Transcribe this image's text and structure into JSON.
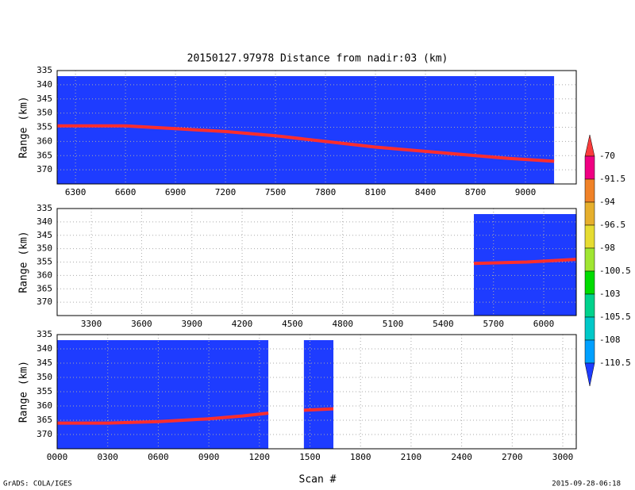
{
  "title": "20150127.97978    Distance from nadir:03 (km)",
  "xlabel": "Scan #",
  "credit": "GrADS: COLA/IGES",
  "timestamp": "2015-09-28-06:18",
  "colorbar": {
    "labels": [
      -70,
      -91.5,
      -94,
      -96.5,
      -98,
      -100.5,
      -103,
      -105.5,
      -108,
      -110.5
    ],
    "colors": [
      "#fa3c3c",
      "#f00082",
      "#f08228",
      "#e6af2d",
      "#e6dc32",
      "#a0e632",
      "#00dc00",
      "#00d28c",
      "#00c8c8",
      "#00a0ff",
      "#1e3cff"
    ]
  },
  "chart_data": [
    {
      "type": "line",
      "ylabel": "Range (km)",
      "color": "#ff2d2d",
      "background": "#1e3cff",
      "grid": true,
      "xlim": [
        6190,
        9305
      ],
      "ylim": [
        375,
        335
      ],
      "xticks": [
        6300,
        6600,
        6900,
        7200,
        7500,
        7800,
        8100,
        8400,
        8700,
        9000
      ],
      "yticks": [
        335,
        340,
        345,
        350,
        355,
        360,
        365,
        370
      ],
      "coverage": [
        {
          "start": 6190,
          "end": 9172
        }
      ],
      "x": [
        6190,
        6600,
        6900,
        7200,
        7500,
        7800,
        8100,
        8400,
        8600,
        8700,
        8900,
        9172
      ],
      "values": [
        354.5,
        354.5,
        355.5,
        356.5,
        358,
        360,
        362,
        363.5,
        364.5,
        365,
        366,
        367
      ]
    },
    {
      "type": "line",
      "ylabel": "Range (km)",
      "color": "#ff2d2d",
      "background": "#1e3cff",
      "grid": true,
      "xlim": [
        3096,
        6194
      ],
      "ylim": [
        375,
        335
      ],
      "xticks": [
        3300,
        3600,
        3900,
        4200,
        4500,
        4800,
        5100,
        5400,
        5700,
        6000
      ],
      "yticks": [
        335,
        340,
        345,
        350,
        355,
        360,
        365,
        370
      ],
      "coverage": [
        {
          "start": 5583,
          "end": 6194
        }
      ],
      "x": [
        5583,
        5900,
        6194
      ],
      "values": [
        355.5,
        355,
        354
      ]
    },
    {
      "type": "line",
      "ylabel": "Range (km)",
      "color": "#ff2d2d",
      "background": "#1e3cff",
      "grid": true,
      "xlim": [
        0,
        3080
      ],
      "ylim": [
        375,
        335
      ],
      "xticks": [
        {
          "value": 0,
          "label": "0000"
        },
        {
          "value": 300,
          "label": "0300"
        },
        {
          "value": 600,
          "label": "0600"
        },
        {
          "value": 900,
          "label": "0900"
        },
        1200,
        1500,
        1800,
        2100,
        2400,
        2700,
        3000
      ],
      "yticks": [
        335,
        340,
        345,
        350,
        355,
        360,
        365,
        370
      ],
      "coverage": [
        {
          "start": 0,
          "end": 1253
        },
        {
          "start": 1464,
          "end": 1639
        }
      ],
      "x": [
        0,
        300,
        600,
        900,
        1100,
        1253,
        null,
        1464,
        1639
      ],
      "values": [
        366,
        366,
        365.5,
        364.5,
        363.5,
        362.5,
        null,
        361.5,
        361
      ]
    }
  ]
}
